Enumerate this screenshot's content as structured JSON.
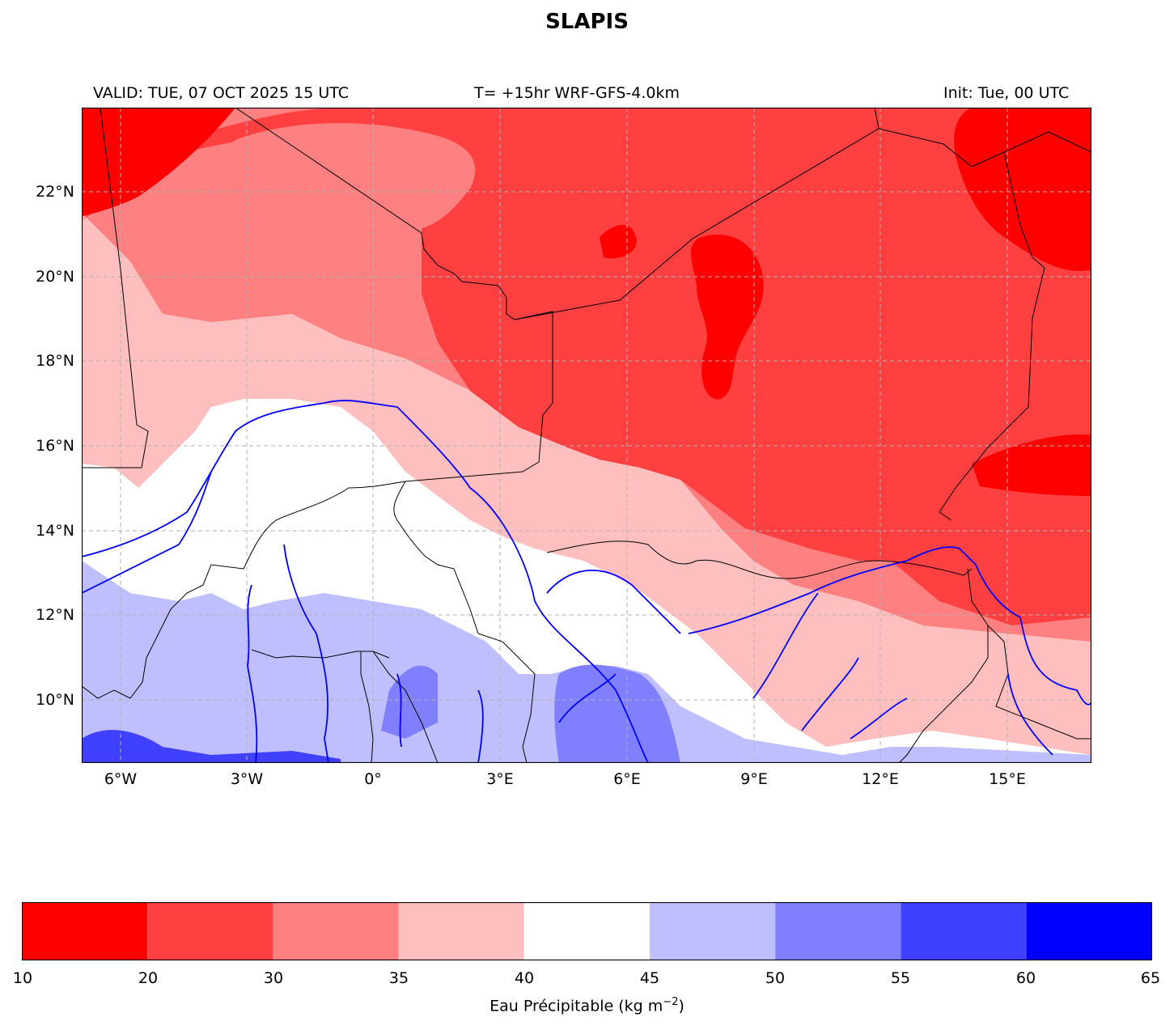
{
  "title": "SLAPIS",
  "header": {
    "valid": "VALID: TUE, 07 OCT 2025 15 UTC",
    "run": "T= +15hr WRF-GFS-4.0km",
    "init": "Init: Tue, 00 UTC"
  },
  "map": {
    "extent": {
      "lon_min": -6.9,
      "lon_max": 17.0,
      "lat_min": 8.5,
      "lat_max": 24.0
    },
    "lat_ticks": [
      {
        "value": 22,
        "label": "22°N"
      },
      {
        "value": 20,
        "label": "20°N"
      },
      {
        "value": 18,
        "label": "18°N"
      },
      {
        "value": 16,
        "label": "16°N"
      },
      {
        "value": 14,
        "label": "14°N"
      },
      {
        "value": 12,
        "label": "12°N"
      },
      {
        "value": 10,
        "label": "10°N"
      }
    ],
    "lon_ticks": [
      {
        "value": -6,
        "label": "6°W"
      },
      {
        "value": -3,
        "label": "3°W"
      },
      {
        "value": 0,
        "label": "0°"
      },
      {
        "value": 3,
        "label": "3°E"
      },
      {
        "value": 6,
        "label": "6°E"
      },
      {
        "value": 9,
        "label": "9°E"
      },
      {
        "value": 12,
        "label": "12°E"
      },
      {
        "value": 15,
        "label": "15°E"
      }
    ],
    "gridlines": true,
    "field_colors": {
      "10-20": "#ff0000",
      "20-30": "#ff4040",
      "30-35": "#ff8080",
      "35-40": "#ffbfbf",
      "40-45": "#ffffff",
      "45-50": "#bfbfff",
      "50-55": "#8080ff",
      "55-60": "#4040ff",
      "60-65": "#0000ff"
    },
    "river_color": "#0000ff",
    "border_color": "#000000"
  },
  "colorbar": {
    "boundaries": [
      10,
      20,
      30,
      35,
      40,
      45,
      50,
      55,
      60,
      65
    ],
    "tick_labels": [
      "10",
      "20",
      "30",
      "35",
      "40",
      "45",
      "50",
      "55",
      "60",
      "65"
    ],
    "colors": [
      "#ff0000",
      "#ff4040",
      "#ff8080",
      "#ffbfbf",
      "#ffffff",
      "#bfbfff",
      "#8080ff",
      "#4040ff",
      "#0000ff"
    ],
    "label_text": "Eau Précipitable (kg m",
    "label_sup": "−2",
    "label_close": ")"
  }
}
